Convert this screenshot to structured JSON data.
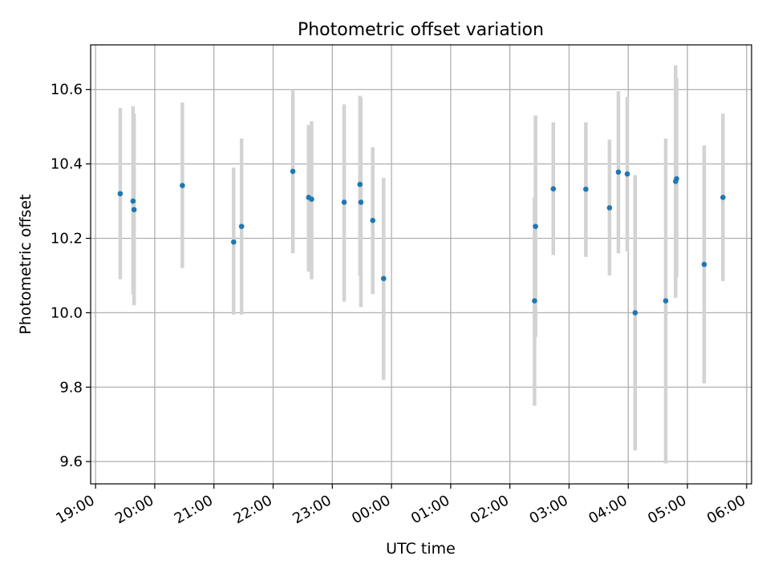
{
  "chart_data": {
    "type": "scatter",
    "title": "Photometric offset variation",
    "xlabel": "UTC time",
    "ylabel": "Photometric offset",
    "x_axis": {
      "type": "time",
      "start": "2024-01-01T18:55",
      "end": "2024-01-02T06:05"
    },
    "xticks": [
      {
        "time": "2024-01-01T19:00",
        "label": "19:00"
      },
      {
        "time": "2024-01-01T20:00",
        "label": "20:00"
      },
      {
        "time": "2024-01-01T21:00",
        "label": "21:00"
      },
      {
        "time": "2024-01-01T22:00",
        "label": "22:00"
      },
      {
        "time": "2024-01-01T23:00",
        "label": "23:00"
      },
      {
        "time": "2024-01-02T00:00",
        "label": "00:00"
      },
      {
        "time": "2024-01-02T01:00",
        "label": "01:00"
      },
      {
        "time": "2024-01-02T02:00",
        "label": "02:00"
      },
      {
        "time": "2024-01-02T03:00",
        "label": "03:00"
      },
      {
        "time": "2024-01-02T04:00",
        "label": "04:00"
      },
      {
        "time": "2024-01-02T05:00",
        "label": "05:00"
      },
      {
        "time": "2024-01-02T06:00",
        "label": "06:00"
      }
    ],
    "ylim": [
      9.54,
      10.72
    ],
    "yticks": [
      9.6,
      9.8,
      10.0,
      10.2,
      10.4,
      10.6
    ],
    "ytick_labels": [
      "9.6",
      "9.8",
      "10.0",
      "10.2",
      "10.4",
      "10.6"
    ],
    "grid": true,
    "colors": {
      "point": "#1f77b4",
      "errorbar": "#d3d3d3",
      "grid": "#b0b0b0"
    },
    "points": [
      {
        "time": "2024-01-01T19:25",
        "y": 10.32,
        "err_low": 10.09,
        "err_high": 10.55
      },
      {
        "time": "2024-01-01T19:38",
        "y": 10.3,
        "err_low": 10.05,
        "err_high": 10.555
      },
      {
        "time": "2024-01-01T19:39",
        "y": 10.277,
        "err_low": 10.02,
        "err_high": 10.535
      },
      {
        "time": "2024-01-01T20:28",
        "y": 10.342,
        "err_low": 10.12,
        "err_high": 10.565
      },
      {
        "time": "2024-01-01T21:20",
        "y": 10.19,
        "err_low": 9.995,
        "err_high": 10.39
      },
      {
        "time": "2024-01-01T21:28",
        "y": 10.232,
        "err_low": 9.995,
        "err_high": 10.468
      },
      {
        "time": "2024-01-01T22:20",
        "y": 10.38,
        "err_low": 10.16,
        "err_high": 10.6
      },
      {
        "time": "2024-01-01T22:36",
        "y": 10.31,
        "err_low": 10.11,
        "err_high": 10.505
      },
      {
        "time": "2024-01-01T22:39",
        "y": 10.305,
        "err_low": 10.09,
        "err_high": 10.515
      },
      {
        "time": "2024-01-01T23:12",
        "y": 10.297,
        "err_low": 10.03,
        "err_high": 10.56
      },
      {
        "time": "2024-01-01T23:28",
        "y": 10.345,
        "err_low": 10.1,
        "err_high": 10.583
      },
      {
        "time": "2024-01-01T23:29",
        "y": 10.297,
        "err_low": 10.015,
        "err_high": 10.578
      },
      {
        "time": "2024-01-01T23:41",
        "y": 10.248,
        "err_low": 10.05,
        "err_high": 10.445
      },
      {
        "time": "2024-01-01T23:52",
        "y": 10.092,
        "err_low": 9.82,
        "err_high": 10.362
      },
      {
        "time": "2024-01-02T02:25",
        "y": 10.032,
        "err_low": 9.75,
        "err_high": 10.31
      },
      {
        "time": "2024-01-02T02:26",
        "y": 10.232,
        "err_low": 9.935,
        "err_high": 10.53
      },
      {
        "time": "2024-01-02T02:44",
        "y": 10.333,
        "err_low": 10.155,
        "err_high": 10.512
      },
      {
        "time": "2024-01-02T03:17",
        "y": 10.332,
        "err_low": 10.15,
        "err_high": 10.512
      },
      {
        "time": "2024-01-02T03:41",
        "y": 10.282,
        "err_low": 10.1,
        "err_high": 10.465
      },
      {
        "time": "2024-01-02T03:50",
        "y": 10.378,
        "err_low": 10.16,
        "err_high": 10.595
      },
      {
        "time": "2024-01-02T03:59",
        "y": 10.373,
        "err_low": 10.165,
        "err_high": 10.58
      },
      {
        "time": "2024-01-02T04:07",
        "y": 10.0,
        "err_low": 9.63,
        "err_high": 10.37
      },
      {
        "time": "2024-01-02T04:38",
        "y": 10.032,
        "err_low": 9.595,
        "err_high": 10.468
      },
      {
        "time": "2024-01-02T04:48",
        "y": 10.353,
        "err_low": 10.04,
        "err_high": 10.665
      },
      {
        "time": "2024-01-02T04:49",
        "y": 10.36,
        "err_low": 10.095,
        "err_high": 10.63
      },
      {
        "time": "2024-01-02T05:17",
        "y": 10.13,
        "err_low": 9.81,
        "err_high": 10.45
      },
      {
        "time": "2024-01-02T05:36",
        "y": 10.31,
        "err_low": 10.085,
        "err_high": 10.535
      }
    ]
  }
}
